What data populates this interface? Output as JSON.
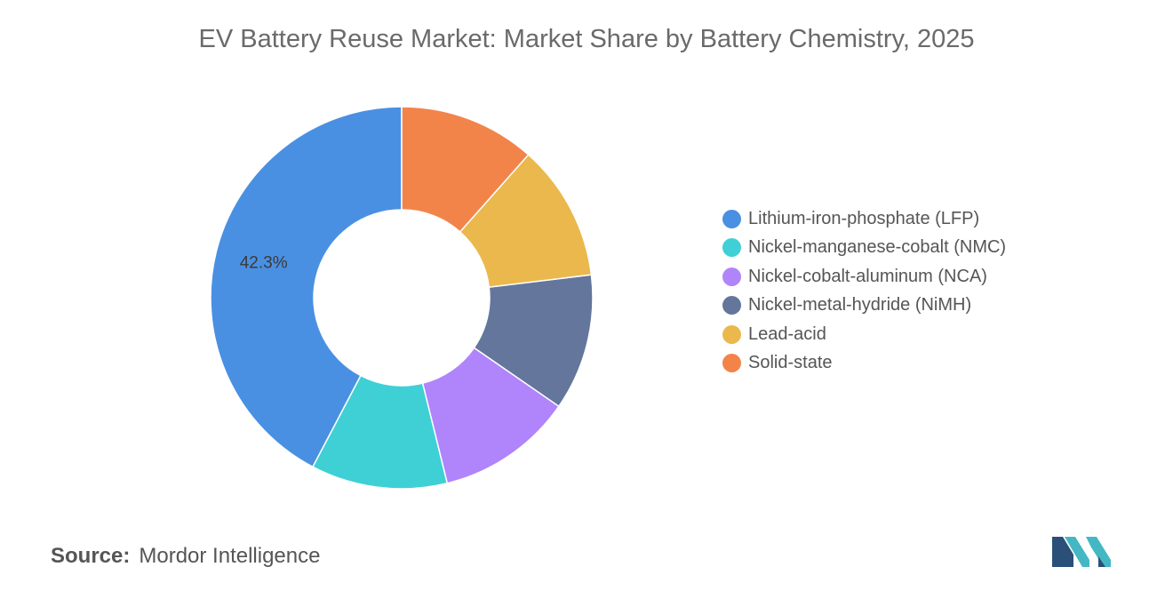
{
  "chart_data": {
    "type": "pie",
    "donut": true,
    "title": "EV Battery Reuse Market: Market Share by Battery Chemistry, 2025",
    "categories": [
      "Lithium-iron-phosphate (LFP)",
      "Nickel-manganese-cobalt (NMC)",
      "Nickel-cobalt-aluminum (NCA)",
      "Nickel-metal-hydride (NiMH)",
      "Lead-acid",
      "Solid-state"
    ],
    "values": [
      42.3,
      11.54,
      11.54,
      11.54,
      11.54,
      11.54
    ],
    "data_labels": [
      "42.3%",
      "",
      "",
      "",
      "",
      ""
    ],
    "colors": [
      "#4a90e2",
      "#3fd0d6",
      "#b084fa",
      "#64769b",
      "#ebb84d",
      "#f2844a"
    ],
    "legend_position": "right",
    "start": "top",
    "direction": "counter-clockwise"
  },
  "source": {
    "label": "Source:",
    "value": "Mordor Intelligence"
  },
  "logo": {
    "icon": "mordor-intelligence-logo-icon",
    "colors": [
      "#2a4f78",
      "#43b8c4"
    ]
  }
}
